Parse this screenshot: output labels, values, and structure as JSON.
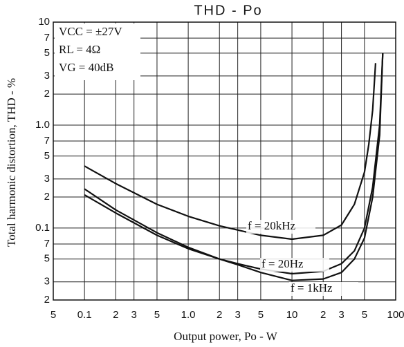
{
  "chart_data": {
    "type": "line",
    "title": "THD - Po",
    "x_label": "Output power, Po - W",
    "y_label": "Total harmonic distortion, THD - %",
    "conditions": [
      "VCC = ±27V",
      "RL = 4Ω",
      "VG = 40dB"
    ],
    "log_x": true,
    "log_y": true,
    "grid": true,
    "xlim": [
      0.05,
      100
    ],
    "ylim": [
      0.02,
      10
    ],
    "xticks": [
      {
        "value": 0.05,
        "label": "5"
      },
      0.1,
      {
        "value": 0.2,
        "label": "2"
      },
      {
        "value": 0.3,
        "label": "3"
      },
      {
        "value": 0.5,
        "label": "5"
      },
      {
        "value": 1,
        "label": "1.0"
      },
      {
        "value": 2,
        "label": "2"
      },
      {
        "value": 3,
        "label": "3"
      },
      {
        "value": 5,
        "label": "5"
      },
      10,
      {
        "value": 20,
        "label": "2"
      },
      {
        "value": 30,
        "label": "3"
      },
      {
        "value": 50,
        "label": "5"
      },
      100
    ],
    "yticks": [
      {
        "value": 0.02,
        "label": "2"
      },
      {
        "value": 0.03,
        "label": "3"
      },
      {
        "value": 0.05,
        "label": "5"
      },
      {
        "value": 0.07,
        "label": "7"
      },
      0.1,
      {
        "value": 0.2,
        "label": "2"
      },
      {
        "value": 0.3,
        "label": "3"
      },
      {
        "value": 0.5,
        "label": "5"
      },
      {
        "value": 0.7,
        "label": "7"
      },
      {
        "value": 1,
        "label": "1.0"
      },
      2,
      3,
      5,
      7,
      10
    ],
    "series": [
      {
        "name": "f = 20kHz",
        "color": "#111111",
        "x": [
          0.1,
          0.2,
          0.5,
          1,
          2,
          5,
          10,
          20,
          30,
          40,
          50,
          55,
          60,
          64
        ],
        "values": [
          0.4,
          0.27,
          0.17,
          0.13,
          0.105,
          0.085,
          0.078,
          0.085,
          0.107,
          0.17,
          0.35,
          0.65,
          1.4,
          4
        ]
      },
      {
        "name": "f = 20Hz",
        "color": "#111111",
        "x": [
          0.1,
          0.2,
          0.5,
          1,
          2,
          3,
          5,
          10,
          20,
          30,
          40,
          50,
          60,
          70,
          75
        ],
        "values": [
          0.24,
          0.15,
          0.09,
          0.065,
          0.05,
          0.045,
          0.04,
          0.036,
          0.038,
          0.045,
          0.06,
          0.1,
          0.25,
          1,
          5
        ]
      },
      {
        "name": "f = 1kHz",
        "color": "#111111",
        "x": [
          0.1,
          0.2,
          0.5,
          1,
          2,
          3,
          5,
          10,
          20,
          30,
          40,
          50,
          60,
          70,
          75
        ],
        "values": [
          0.21,
          0.14,
          0.085,
          0.063,
          0.05,
          0.044,
          0.037,
          0.031,
          0.032,
          0.037,
          0.05,
          0.08,
          0.2,
          0.8,
          5
        ]
      }
    ]
  }
}
